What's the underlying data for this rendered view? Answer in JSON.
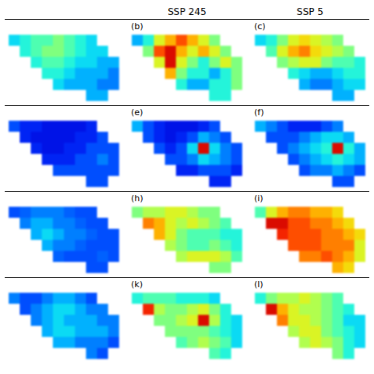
{
  "chart_data": {
    "type": "heatmap",
    "color": "jet",
    "color_range": [
      0,
      1
    ],
    "tick_labels": false,
    "column_titles": [
      null,
      "SSP 245",
      "SSP 5"
    ],
    "panels": [
      {
        "label": null,
        "cells": [
          [
            0.35,
            0.4,
            0.45,
            0.45,
            0.5,
            0.45,
            0.4,
            0.35,
            null,
            null
          ],
          [
            null,
            0.4,
            0.45,
            0.5,
            0.5,
            0.45,
            0.4,
            0.35,
            0.35,
            null
          ],
          [
            null,
            null,
            0.4,
            0.45,
            0.45,
            0.4,
            0.35,
            0.35,
            0.3,
            0.3
          ],
          [
            null,
            null,
            null,
            0.4,
            0.4,
            0.35,
            0.3,
            0.3,
            0.3,
            0.25
          ],
          [
            null,
            null,
            null,
            null,
            0.35,
            0.3,
            0.3,
            0.3,
            0.25,
            0.25
          ],
          [
            null,
            null,
            null,
            null,
            null,
            null,
            null,
            0.3,
            0.3,
            null
          ]
        ]
      },
      {
        "label": "(b)",
        "cells": [
          [
            0.3,
            0.4,
            0.6,
            0.7,
            0.8,
            0.7,
            0.6,
            0.5,
            null,
            null
          ],
          [
            null,
            0.5,
            0.8,
            0.9,
            0.7,
            0.6,
            0.7,
            0.6,
            0.5,
            null
          ],
          [
            null,
            null,
            0.6,
            0.9,
            0.6,
            0.5,
            0.4,
            0.5,
            0.6,
            0.5
          ],
          [
            null,
            null,
            null,
            0.7,
            0.5,
            0.4,
            0.4,
            0.3,
            0.4,
            0.5
          ],
          [
            null,
            null,
            null,
            null,
            0.4,
            0.3,
            0.3,
            0.4,
            0.4,
            0.5
          ],
          [
            null,
            null,
            null,
            null,
            null,
            null,
            null,
            0.4,
            0.4,
            null
          ]
        ]
      },
      {
        "label": "(c)",
        "cells": [
          [
            0.35,
            0.4,
            0.5,
            0.6,
            0.65,
            0.6,
            0.55,
            0.5,
            null,
            null
          ],
          [
            null,
            0.45,
            0.6,
            0.7,
            0.75,
            0.65,
            0.6,
            0.55,
            0.5,
            null
          ],
          [
            null,
            null,
            0.5,
            0.55,
            0.6,
            0.6,
            0.5,
            0.45,
            0.45,
            0.4
          ],
          [
            null,
            null,
            null,
            0.4,
            0.35,
            0.3,
            0.3,
            0.35,
            0.4,
            0.4
          ],
          [
            null,
            null,
            null,
            null,
            0.3,
            0.25,
            0.25,
            0.3,
            0.35,
            0.35
          ],
          [
            null,
            null,
            null,
            null,
            null,
            null,
            null,
            0.3,
            0.3,
            null
          ]
        ]
      },
      {
        "label": null,
        "cells": [
          [
            0.2,
            0.15,
            0.15,
            0.12,
            0.12,
            0.12,
            0.12,
            0.15,
            null,
            null
          ],
          [
            null,
            0.15,
            0.12,
            0.12,
            0.12,
            0.12,
            0.15,
            0.15,
            0.2,
            null
          ],
          [
            null,
            null,
            0.15,
            0.12,
            0.12,
            0.15,
            0.15,
            0.2,
            0.2,
            0.2
          ],
          [
            null,
            null,
            null,
            0.15,
            0.15,
            0.15,
            0.2,
            0.2,
            0.25,
            0.2
          ],
          [
            null,
            null,
            null,
            null,
            0.2,
            0.2,
            0.2,
            0.2,
            0.2,
            0.2
          ],
          [
            null,
            null,
            null,
            null,
            null,
            null,
            null,
            0.2,
            0.2,
            null
          ]
        ]
      },
      {
        "label": "(e)",
        "cells": [
          [
            0.3,
            0.2,
            0.15,
            0.12,
            0.12,
            0.12,
            0.15,
            0.2,
            null,
            null
          ],
          [
            null,
            0.2,
            0.15,
            0.12,
            0.15,
            0.2,
            0.3,
            0.25,
            0.2,
            null
          ],
          [
            null,
            null,
            0.2,
            0.15,
            0.2,
            0.35,
            0.9,
            0.35,
            0.25,
            0.2
          ],
          [
            null,
            null,
            null,
            0.2,
            0.2,
            0.25,
            0.35,
            0.3,
            0.25,
            0.2
          ],
          [
            null,
            null,
            null,
            null,
            0.15,
            0.15,
            0.2,
            0.2,
            0.2,
            0.15
          ],
          [
            null,
            null,
            null,
            null,
            null,
            null,
            null,
            0.15,
            0.15,
            null
          ]
        ]
      },
      {
        "label": "(f)",
        "cells": [
          [
            0.3,
            0.25,
            0.2,
            0.15,
            0.15,
            0.15,
            0.2,
            0.25,
            null,
            null
          ],
          [
            null,
            0.2,
            0.2,
            0.2,
            0.25,
            0.3,
            0.35,
            0.35,
            0.3,
            null
          ],
          [
            null,
            null,
            0.2,
            0.25,
            0.3,
            0.35,
            0.4,
            0.9,
            0.4,
            0.3
          ],
          [
            null,
            null,
            null,
            0.2,
            0.25,
            0.3,
            0.35,
            0.4,
            0.35,
            0.3
          ],
          [
            null,
            null,
            null,
            null,
            0.2,
            0.25,
            0.25,
            0.3,
            0.25,
            0.2
          ],
          [
            null,
            null,
            null,
            null,
            null,
            null,
            null,
            0.2,
            0.2,
            null
          ]
        ]
      },
      {
        "label": null,
        "cells": [
          [
            0.2,
            0.22,
            0.25,
            0.25,
            0.25,
            0.22,
            0.2,
            0.2,
            null,
            null
          ],
          [
            null,
            0.25,
            0.3,
            0.3,
            0.25,
            0.25,
            0.22,
            0.2,
            0.2,
            null
          ],
          [
            null,
            null,
            0.3,
            0.35,
            0.3,
            0.25,
            0.25,
            0.22,
            0.2,
            0.2
          ],
          [
            null,
            null,
            null,
            0.3,
            0.25,
            0.25,
            0.22,
            0.2,
            0.2,
            0.2
          ],
          [
            null,
            null,
            null,
            null,
            0.22,
            0.2,
            0.2,
            0.2,
            0.22,
            0.2
          ],
          [
            null,
            null,
            null,
            null,
            null,
            null,
            null,
            0.2,
            0.2,
            null
          ]
        ]
      },
      {
        "label": "(h)",
        "cells": [
          [
            0.5,
            0.55,
            0.55,
            0.6,
            0.6,
            0.55,
            0.5,
            0.5,
            null,
            null
          ],
          [
            null,
            0.75,
            0.7,
            0.6,
            0.55,
            0.6,
            0.55,
            0.5,
            0.45,
            null
          ],
          [
            null,
            null,
            0.7,
            0.6,
            0.5,
            0.45,
            0.45,
            0.45,
            0.4,
            0.4
          ],
          [
            null,
            null,
            null,
            0.55,
            0.5,
            0.45,
            0.45,
            0.5,
            0.45,
            0.4
          ],
          [
            null,
            null,
            null,
            null,
            0.55,
            0.6,
            0.6,
            0.6,
            0.55,
            0.45
          ],
          [
            null,
            null,
            null,
            null,
            null,
            null,
            null,
            0.5,
            0.5,
            null
          ]
        ]
      },
      {
        "label": "(i)",
        "cells": [
          [
            0.45,
            0.6,
            0.7,
            0.75,
            0.75,
            0.7,
            0.7,
            0.65,
            null,
            null
          ],
          [
            null,
            0.9,
            0.9,
            0.8,
            0.8,
            0.75,
            0.75,
            0.7,
            0.65,
            null
          ],
          [
            null,
            null,
            0.85,
            0.8,
            0.8,
            0.8,
            0.75,
            0.75,
            0.7,
            0.65
          ],
          [
            null,
            null,
            null,
            0.8,
            0.8,
            0.8,
            0.75,
            0.75,
            0.75,
            0.6
          ],
          [
            null,
            null,
            null,
            null,
            0.75,
            0.75,
            0.8,
            0.75,
            0.7,
            0.6
          ],
          [
            null,
            null,
            null,
            null,
            null,
            null,
            null,
            0.7,
            0.65,
            null
          ]
        ]
      },
      {
        "label": null,
        "cells": [
          [
            0.25,
            0.2,
            0.2,
            0.25,
            0.3,
            0.3,
            0.25,
            0.2,
            null,
            null
          ],
          [
            null,
            0.2,
            0.25,
            0.3,
            0.35,
            0.35,
            0.3,
            0.25,
            0.25,
            null
          ],
          [
            null,
            null,
            0.25,
            0.3,
            0.35,
            0.3,
            0.3,
            0.3,
            0.25,
            0.25
          ],
          [
            null,
            null,
            null,
            0.3,
            0.35,
            0.35,
            0.3,
            0.3,
            0.3,
            0.25
          ],
          [
            null,
            null,
            null,
            null,
            0.3,
            0.3,
            0.25,
            0.25,
            0.25,
            0.2
          ],
          [
            null,
            null,
            null,
            null,
            null,
            null,
            null,
            0.25,
            0.2,
            null
          ]
        ]
      },
      {
        "label": "(k)",
        "cells": [
          [
            0.4,
            0.45,
            0.45,
            0.45,
            0.4,
            0.4,
            0.4,
            0.35,
            null,
            null
          ],
          [
            null,
            0.85,
            0.55,
            0.5,
            0.5,
            0.55,
            0.6,
            0.5,
            0.4,
            null
          ],
          [
            null,
            null,
            0.5,
            0.5,
            0.55,
            0.6,
            0.9,
            0.55,
            0.4,
            0.35
          ],
          [
            null,
            null,
            null,
            0.5,
            0.5,
            0.5,
            0.5,
            0.45,
            0.4,
            0.35
          ],
          [
            null,
            null,
            null,
            null,
            0.45,
            0.5,
            0.55,
            0.5,
            0.45,
            0.35
          ],
          [
            null,
            null,
            null,
            null,
            null,
            null,
            null,
            0.45,
            0.4,
            null
          ]
        ]
      },
      {
        "label": "(l)",
        "cells": [
          [
            0.4,
            0.5,
            0.55,
            0.55,
            0.6,
            0.55,
            0.5,
            0.45,
            null,
            null
          ],
          [
            null,
            0.9,
            0.7,
            0.6,
            0.55,
            0.55,
            0.5,
            0.45,
            0.4,
            null
          ],
          [
            null,
            null,
            0.75,
            0.6,
            0.6,
            0.55,
            0.5,
            0.45,
            0.35,
            0.35
          ],
          [
            null,
            null,
            null,
            0.55,
            0.6,
            0.6,
            0.5,
            0.45,
            0.4,
            0.35
          ],
          [
            null,
            null,
            null,
            null,
            0.55,
            0.6,
            0.55,
            0.5,
            0.4,
            0.35
          ],
          [
            null,
            null,
            null,
            null,
            null,
            null,
            null,
            0.5,
            0.4,
            null
          ]
        ]
      }
    ]
  }
}
